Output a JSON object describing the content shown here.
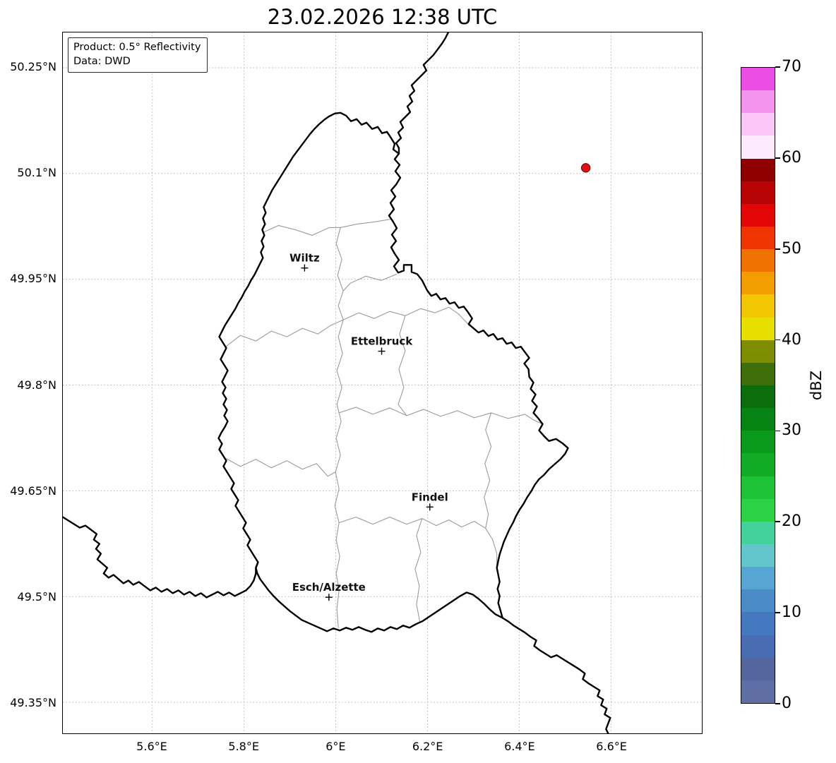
{
  "title": "23.02.2026 12:38 UTC",
  "info_box": {
    "product": "Product: 0.5° Reflectivity",
    "data_source": "Data: DWD"
  },
  "map": {
    "extent": {
      "lon_min": 5.405,
      "lon_max": 6.798,
      "lat_min": 49.306,
      "lat_max": 50.3
    },
    "lat_ticks": [
      {
        "label": "50.25°N",
        "value": 50.25
      },
      {
        "label": "50.1°N",
        "value": 50.1
      },
      {
        "label": "49.95°N",
        "value": 49.95
      },
      {
        "label": "49.8°N",
        "value": 49.8
      },
      {
        "label": "49.65°N",
        "value": 49.65
      },
      {
        "label": "49.5°N",
        "value": 49.5
      },
      {
        "label": "49.35°N",
        "value": 49.35
      }
    ],
    "lon_ticks": [
      {
        "label": "5.6°E",
        "value": 5.6
      },
      {
        "label": "5.8°E",
        "value": 5.8
      },
      {
        "label": "6°E",
        "value": 6.0
      },
      {
        "label": "6.2°E",
        "value": 6.2
      },
      {
        "label": "6.4°E",
        "value": 6.4
      },
      {
        "label": "6.6°E",
        "value": 6.6
      }
    ],
    "cities": [
      {
        "name": "Wiltz",
        "lon": 5.932,
        "lat": 49.966
      },
      {
        "name": "Ettelbruck",
        "lon": 6.1,
        "lat": 49.848
      },
      {
        "name": "Findel",
        "lon": 6.205,
        "lat": 49.627
      },
      {
        "name": "Esch/Alzette",
        "lon": 5.985,
        "lat": 49.499
      }
    ],
    "echoes": [
      {
        "lon": 6.545,
        "lat": 50.108,
        "dbz": 52.5,
        "color": "#e01010",
        "edge_color": "#5f0000"
      }
    ]
  },
  "colorbar": {
    "label": "dBZ",
    "unit_min": 0,
    "unit_max": 70,
    "ticks": [
      0,
      10,
      20,
      30,
      40,
      50,
      60,
      70
    ],
    "segment_step_dbz": 2.5,
    "colors_bottom_to_top": [
      "#5f6fa5",
      "#55659e",
      "#4a6cb2",
      "#4579bf",
      "#4b8cc8",
      "#57a5d3",
      "#61c5cb",
      "#43d29b",
      "#2bd344",
      "#1ec436",
      "#12ab26",
      "#0b991c",
      "#068313",
      "#0b6d0b",
      "#3f6d07",
      "#7e8e00",
      "#e6df00",
      "#f2c600",
      "#f39d00",
      "#ef7200",
      "#ee3400",
      "#e20606",
      "#b70303",
      "#8f0101",
      "#fdeafc",
      "#f9c6f7",
      "#f395ef",
      "#eb4ee5"
    ]
  }
}
